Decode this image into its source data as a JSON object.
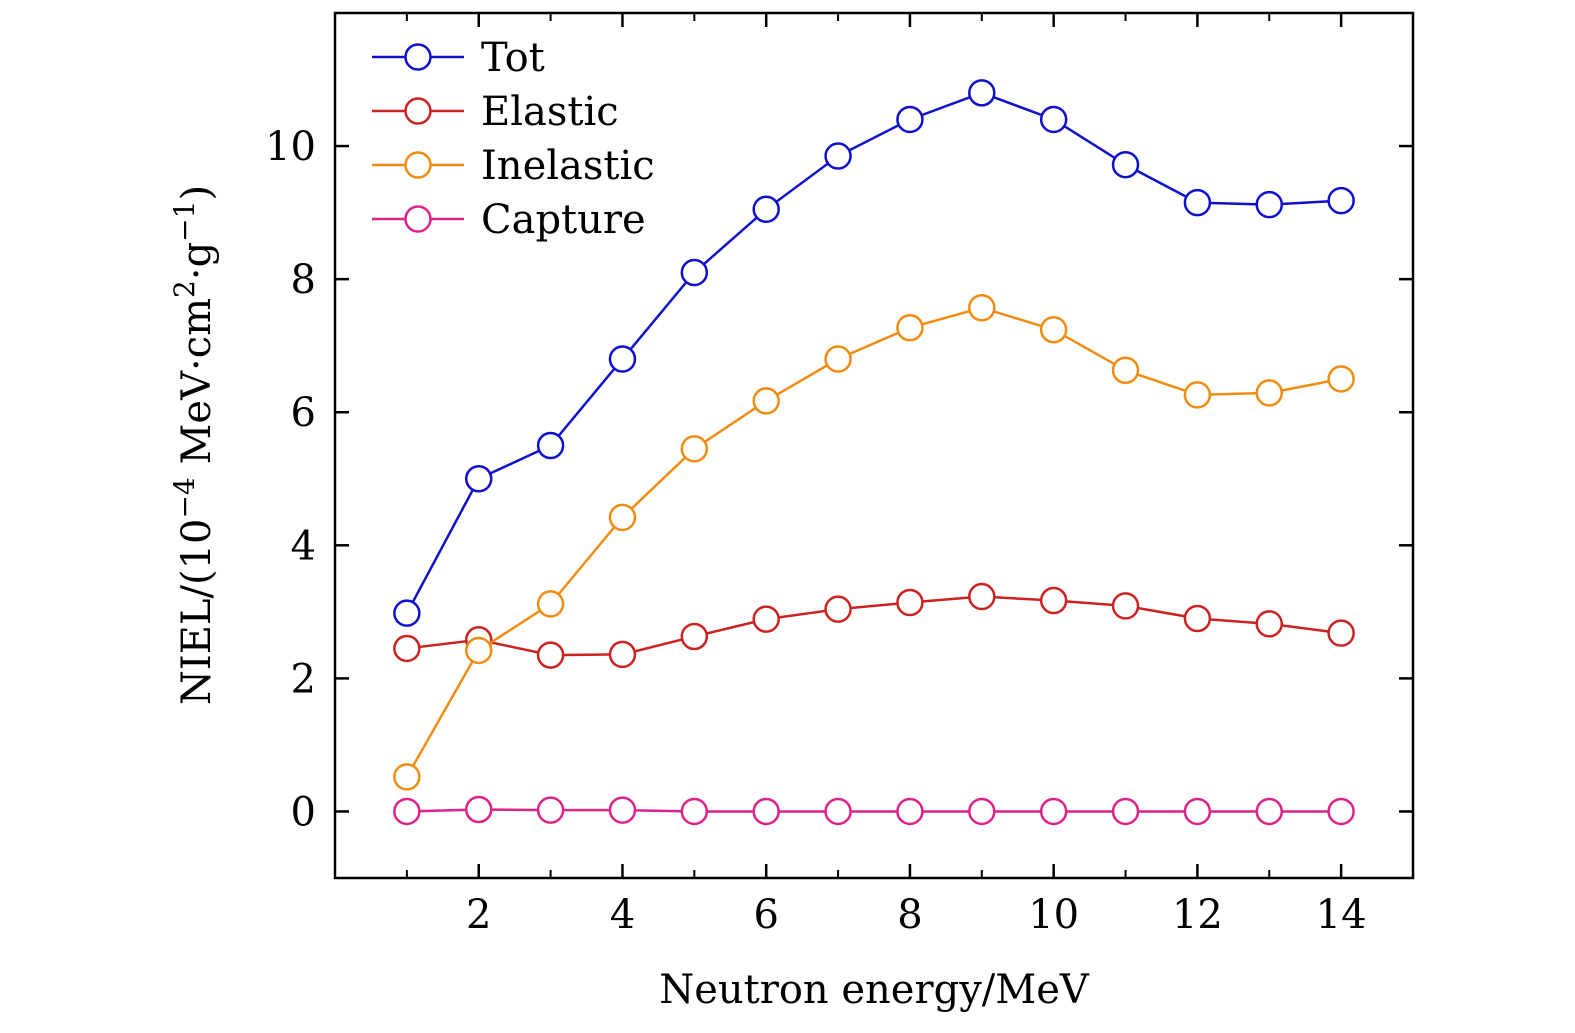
{
  "chart_data": {
    "type": "line",
    "title": "",
    "xlabel": "Neutron energy/MeV",
    "ylabel": {
      "prefix": "NIEL/(10",
      "exp1": "−4",
      "mid": " MeV·cm",
      "exp2": "2",
      "mid2": "·g",
      "exp3": "−1",
      "suffix": ")"
    },
    "xlim": [
      0,
      15
    ],
    "ylim": [
      -1,
      12
    ],
    "xticks": [
      2,
      4,
      6,
      8,
      10,
      12,
      14
    ],
    "xticks_minor": [
      1,
      3,
      5,
      7,
      9,
      11,
      13
    ],
    "yticks": [
      0,
      2,
      4,
      6,
      8,
      10
    ],
    "grid": false,
    "legend_position": "top-left",
    "x": [
      1,
      2,
      3,
      4,
      5,
      6,
      7,
      8,
      9,
      10,
      11,
      12,
      13,
      14
    ],
    "series": [
      {
        "name": "Tot",
        "color": "#1010cc",
        "values": [
          2.98,
          5.0,
          5.5,
          6.8,
          8.1,
          9.05,
          9.85,
          10.4,
          10.8,
          10.4,
          9.72,
          9.15,
          9.12,
          9.18
        ]
      },
      {
        "name": "Elastic",
        "color": "#cc2222",
        "values": [
          2.45,
          2.58,
          2.35,
          2.36,
          2.63,
          2.89,
          3.04,
          3.14,
          3.23,
          3.17,
          3.09,
          2.9,
          2.82,
          2.68
        ]
      },
      {
        "name": "Inelastic",
        "color": "#f08c10",
        "values": [
          0.52,
          2.42,
          3.12,
          4.42,
          5.45,
          6.17,
          6.8,
          7.27,
          7.57,
          7.24,
          6.63,
          6.26,
          6.29,
          6.5
        ]
      },
      {
        "name": "Capture",
        "color": "#dd2288",
        "values": [
          0.0,
          0.03,
          0.02,
          0.02,
          0.0,
          0.0,
          0.0,
          0.0,
          0.0,
          0.0,
          0.0,
          0.0,
          0.0,
          0.0
        ]
      }
    ]
  }
}
